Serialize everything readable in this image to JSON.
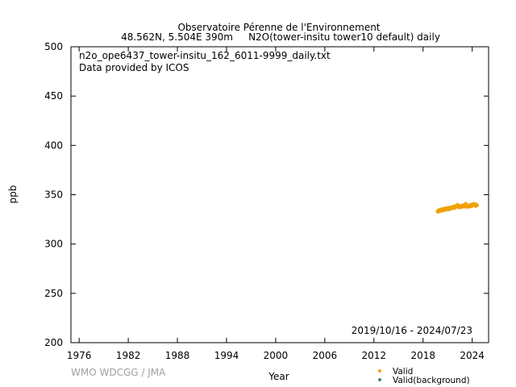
{
  "chart_data": {
    "type": "scatter",
    "title": "Observatoire Pérenne de l'Environnement",
    "subtitle": "48.562N, 5.504E 390m     N2O(tower-insitu tower10 default) daily",
    "file_label": "n2o_ope6437_tower-insitu_162_6011-9999_daily.txt",
    "provider_label": "Data provided by ICOS",
    "date_range": "2019/10/16 - 2024/07/23",
    "xlabel": "Year",
    "ylabel": "ppb",
    "credit": "WMO WDCGG / JMA",
    "xlim": [
      1975,
      2026
    ],
    "ylim": [
      200,
      500
    ],
    "x_ticks": [
      1976,
      1982,
      1988,
      1994,
      2000,
      2006,
      2012,
      2018,
      2024
    ],
    "y_ticks": [
      200,
      250,
      300,
      350,
      400,
      450,
      500
    ],
    "grid": false,
    "legend_placement": "bottom-right",
    "series": [
      {
        "name": "Valid",
        "color": "#f0a000",
        "marker": "diamond",
        "points": [
          [
            2019.8,
            333.0
          ],
          [
            2019.9,
            334.0
          ],
          [
            2020.0,
            333.5
          ],
          [
            2020.1,
            334.5
          ],
          [
            2020.2,
            334.0
          ],
          [
            2020.3,
            334.8
          ],
          [
            2020.4,
            335.0
          ],
          [
            2020.5,
            334.5
          ],
          [
            2020.6,
            335.5
          ],
          [
            2020.7,
            335.0
          ],
          [
            2020.8,
            335.8
          ],
          [
            2020.9,
            335.5
          ],
          [
            2021.0,
            336.0
          ],
          [
            2021.1,
            335.5
          ],
          [
            2021.2,
            336.5
          ],
          [
            2021.3,
            336.0
          ],
          [
            2021.4,
            336.8
          ],
          [
            2021.5,
            336.5
          ],
          [
            2021.6,
            337.0
          ],
          [
            2021.7,
            337.5
          ],
          [
            2021.8,
            336.8
          ],
          [
            2021.9,
            338.0
          ],
          [
            2022.0,
            337.5
          ],
          [
            2022.1,
            338.5
          ],
          [
            2022.2,
            339.5
          ],
          [
            2022.3,
            338.0
          ],
          [
            2022.4,
            337.5
          ],
          [
            2022.5,
            338.2
          ],
          [
            2022.6,
            337.8
          ],
          [
            2022.7,
            338.5
          ],
          [
            2022.8,
            338.0
          ],
          [
            2022.9,
            338.8
          ],
          [
            2023.0,
            339.0
          ],
          [
            2023.1,
            338.2
          ],
          [
            2023.2,
            340.5
          ],
          [
            2023.3,
            338.5
          ],
          [
            2023.4,
            338.0
          ],
          [
            2023.5,
            338.8
          ],
          [
            2023.6,
            338.3
          ],
          [
            2023.7,
            339.0
          ],
          [
            2023.8,
            338.5
          ],
          [
            2023.9,
            339.5
          ],
          [
            2024.0,
            339.0
          ],
          [
            2024.1,
            340.0
          ],
          [
            2024.2,
            340.5
          ],
          [
            2024.3,
            339.5
          ],
          [
            2024.4,
            339.0
          ],
          [
            2024.5,
            339.8
          ],
          [
            2024.56,
            339.2
          ]
        ]
      },
      {
        "name": "Valid(background)",
        "color": "#2e8b57",
        "marker": "diamond",
        "points": []
      }
    ]
  }
}
